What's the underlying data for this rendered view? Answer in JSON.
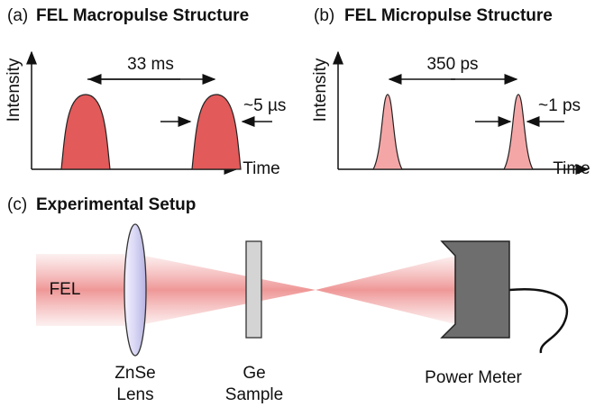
{
  "panels": [
    {
      "label": "(a)",
      "title": "FEL Macropulse Structure",
      "y_label": "Intensity",
      "x_label": "Time",
      "spacing": "33 ms",
      "width": "~5 µs"
    },
    {
      "label": "(b)",
      "title": "FEL Micropulse Structure",
      "y_label": "Intensity",
      "x_label": "Time",
      "spacing": "350 ps",
      "width": "~1 ps"
    }
  ],
  "setup": {
    "label": "(c)",
    "title": "Experimental Setup",
    "beam_label": "FEL",
    "components": [
      {
        "lines": [
          "ZnSe",
          "Lens"
        ]
      },
      {
        "lines": [
          "Ge",
          "Sample"
        ]
      },
      {
        "lines": [
          "Power Meter"
        ]
      }
    ]
  }
}
